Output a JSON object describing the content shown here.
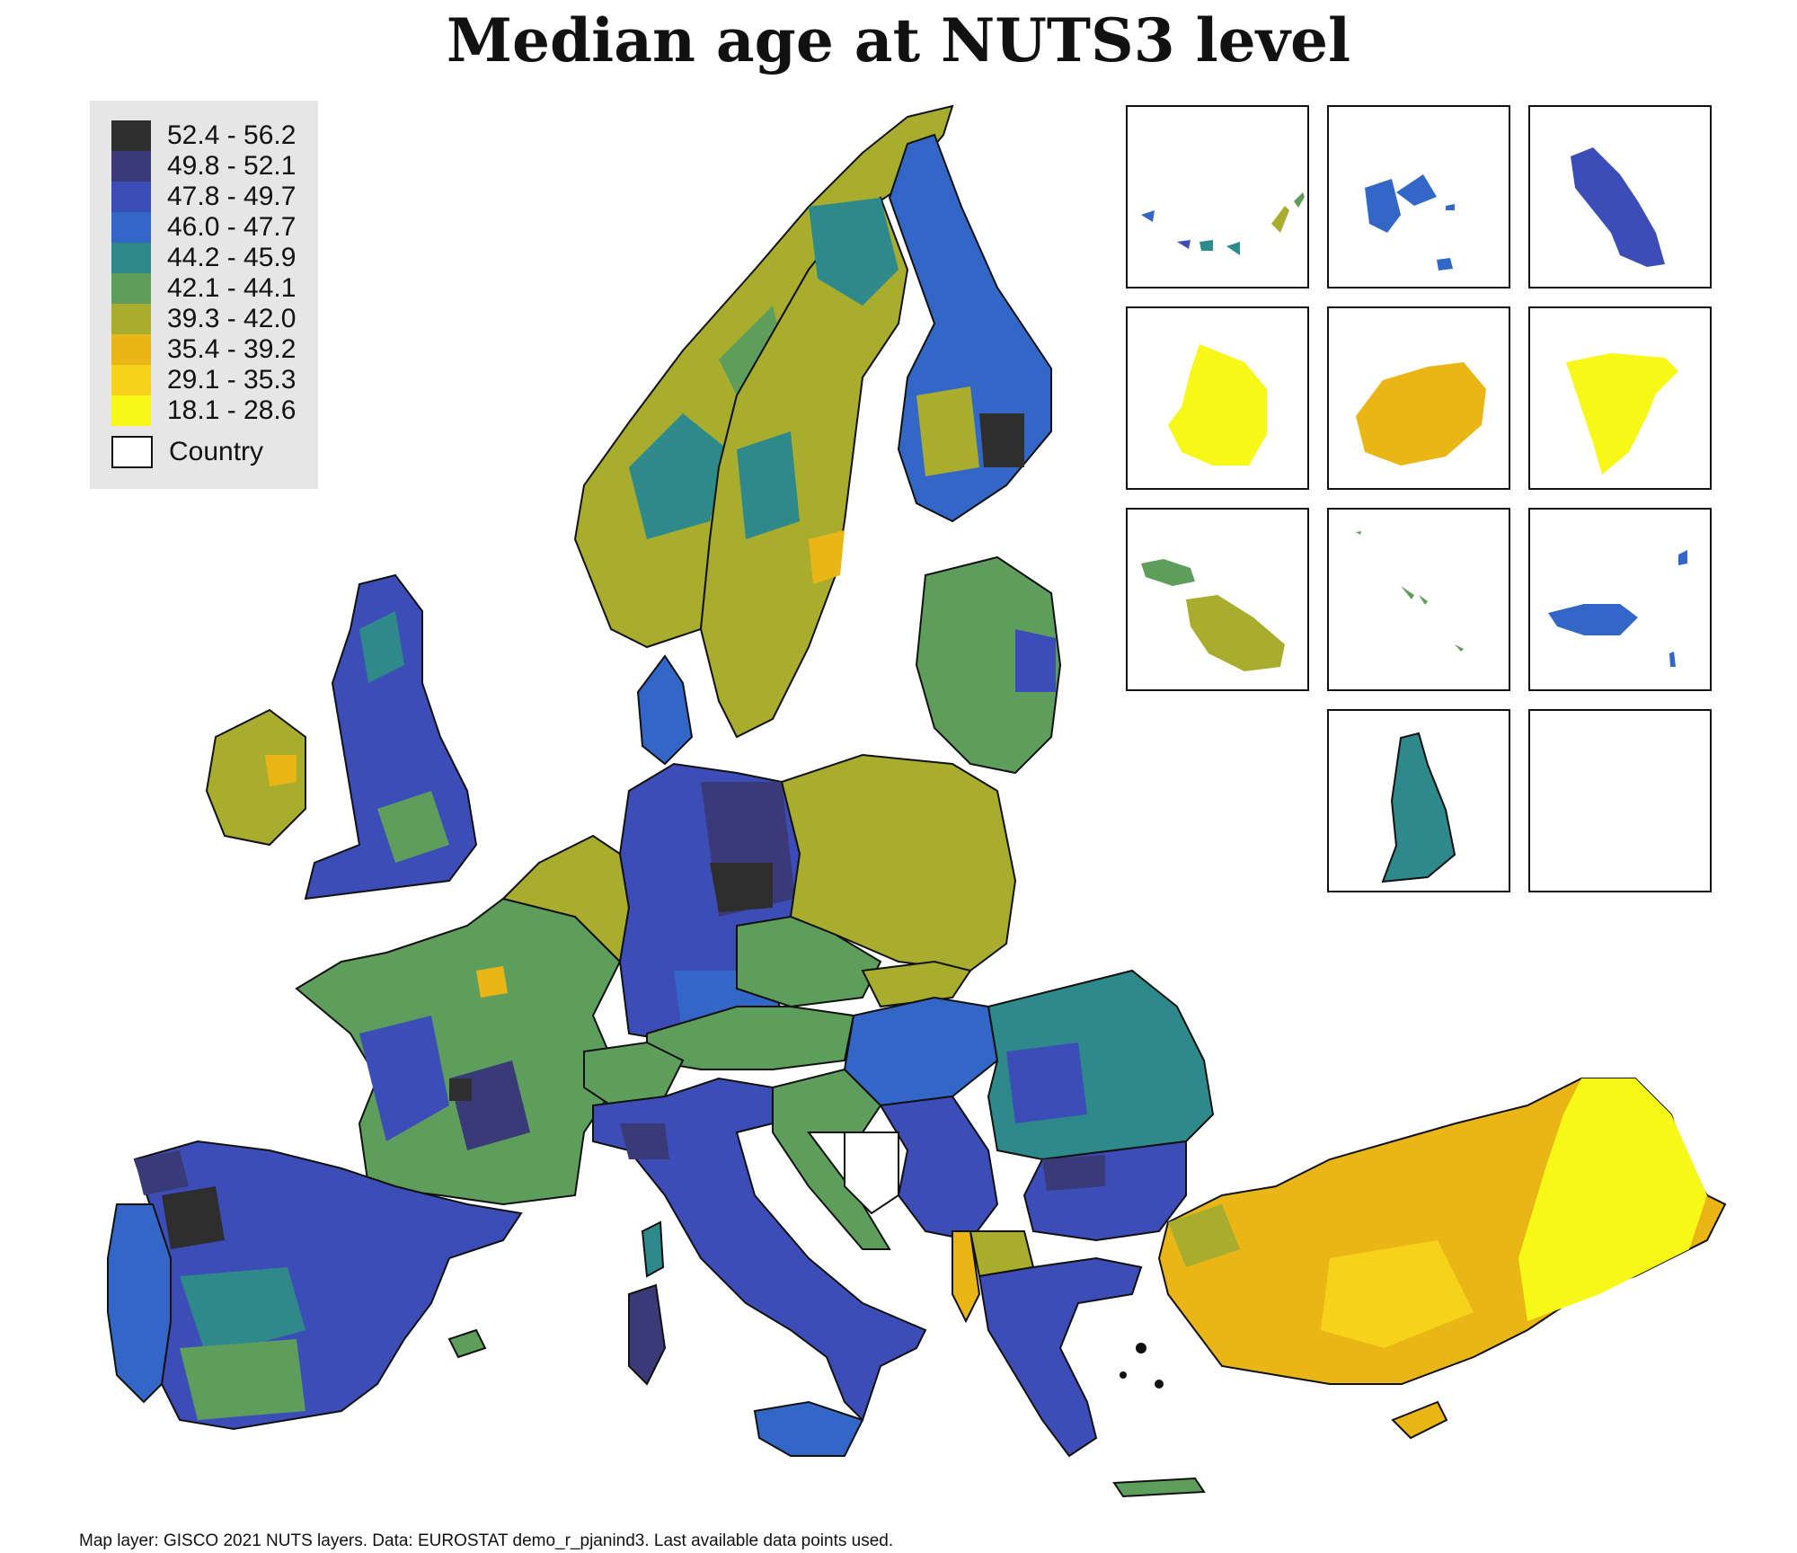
{
  "title": "Median age at NUTS3 level",
  "legend": {
    "classes": [
      {
        "label": "52.4 - 56.2",
        "color": "#2e2e2e"
      },
      {
        "label": "49.8 - 52.1",
        "color": "#3b3a78"
      },
      {
        "label": "47.8 - 49.7",
        "color": "#3d4db8"
      },
      {
        "label": "46.0 - 47.7",
        "color": "#3267c7"
      },
      {
        "label": "44.2 - 45.9",
        "color": "#2e8a8a"
      },
      {
        "label": "42.1 - 44.1",
        "color": "#5e9e5c"
      },
      {
        "label": "39.3 - 42.0",
        "color": "#a8ad2e"
      },
      {
        "label": "35.4 - 39.2",
        "color": "#e9b616"
      },
      {
        "label": "29.1 - 35.3",
        "color": "#f7d21a"
      },
      {
        "label": "18.1 - 28.6",
        "color": "#f7f718"
      }
    ],
    "country_label": "Country"
  },
  "caption": "Map layer: GISCO 2021 NUTS layers. Data: EUROSTAT demo_r_pjanind3. Last available data points used.",
  "colors": {
    "background": "#ffffff",
    "border": "#111111",
    "legend_bg": "#e6e6e6"
  }
}
